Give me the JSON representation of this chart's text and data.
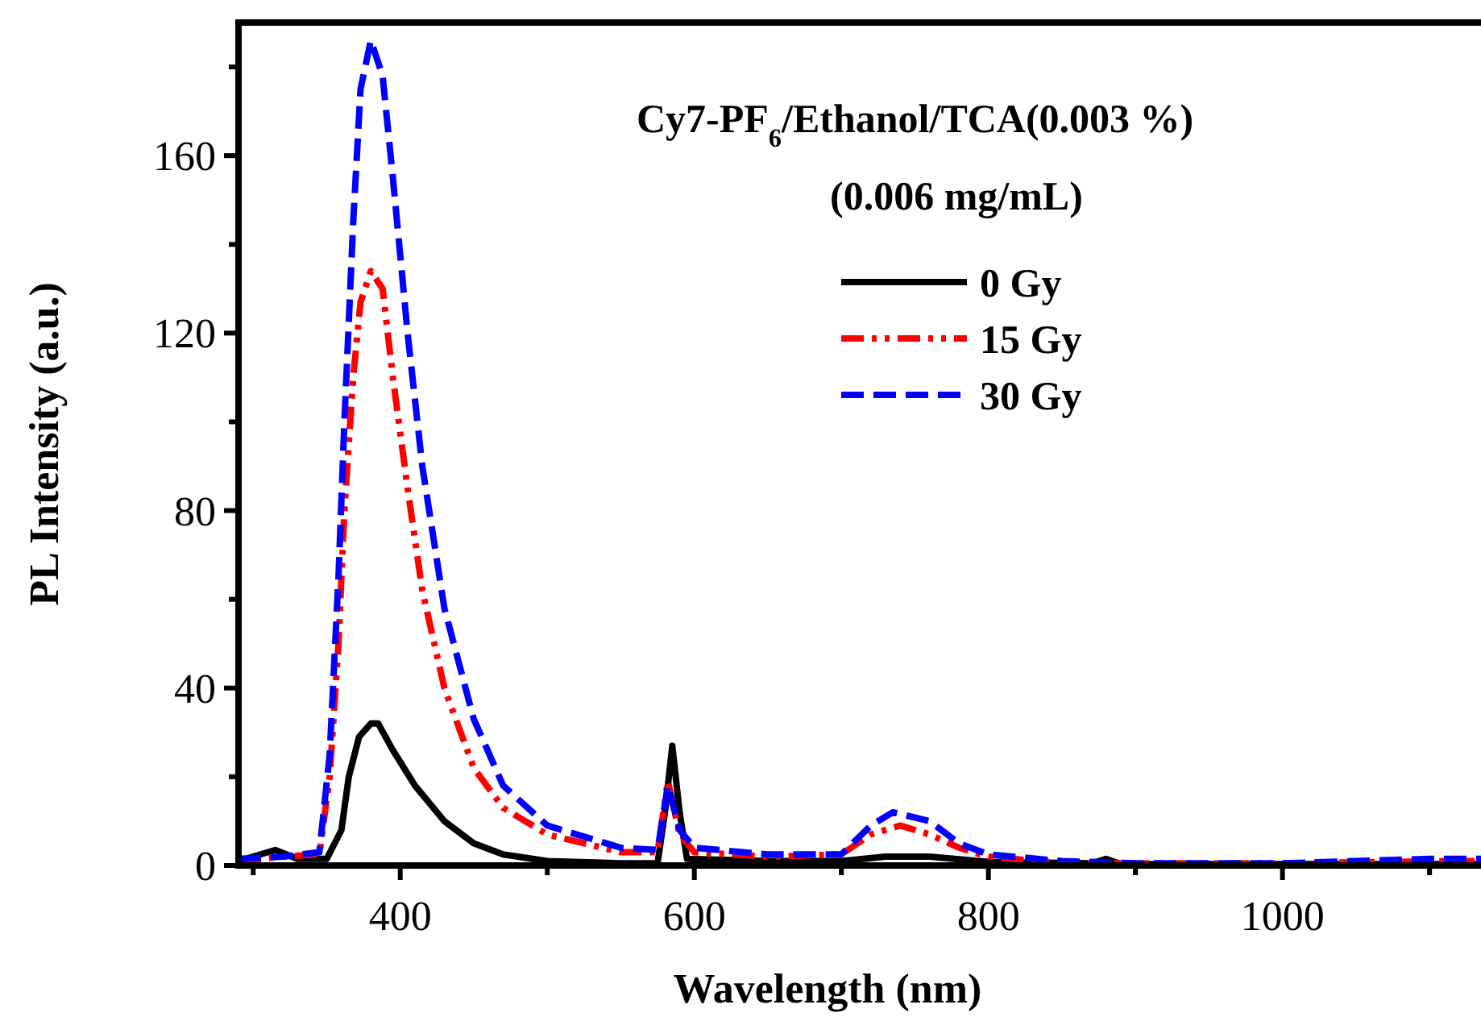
{
  "chart_data": {
    "type": "line",
    "title": "Cy7-PF$_{6}$/Ethanol/TCA(0.003 %)",
    "subtitle": "(0.006 mg/mL)",
    "xlabel": "Wavelength (nm)",
    "ylabel": "PL Intensity  (a.u.)",
    "xlim": [
      290,
      1135
    ],
    "xticks": [
      {
        "value": 300,
        "label": null
      },
      400,
      {
        "value": 500,
        "label": null
      },
      600,
      {
        "value": 700,
        "label": null
      },
      800,
      {
        "value": 900,
        "label": null
      },
      1000,
      {
        "value": 1100,
        "label": null
      }
    ],
    "ylim": [
      0,
      190
    ],
    "yticks": [
      0,
      {
        "value": 20,
        "label": null
      },
      40,
      {
        "value": 60,
        "label": null
      },
      80,
      {
        "value": 100,
        "label": null
      },
      120,
      {
        "value": 140,
        "label": null
      },
      160,
      {
        "value": 180,
        "label": null
      }
    ],
    "grid": false,
    "legend": "top right",
    "series": [
      {
        "name": "0 Gy",
        "color": "#000000",
        "line_style": "solid",
        "x": [
          290,
          315,
          330,
          350,
          360,
          365,
          372,
          380,
          385,
          395,
          410,
          430,
          450,
          470,
          500,
          550,
          575,
          580,
          585,
          590,
          595,
          650,
          700,
          730,
          760,
          800,
          870,
          880,
          890,
          1000,
          1135
        ],
        "values": [
          1,
          3.5,
          1.5,
          1.5,
          8,
          20,
          29,
          32,
          32,
          26,
          18,
          10,
          5,
          2.5,
          1,
          0.5,
          0.5,
          12,
          27,
          12,
          1.5,
          1,
          1,
          2,
          2,
          0.8,
          0.5,
          1.5,
          0.3,
          0.3,
          0.3
        ]
      },
      {
        "name": "15 Gy",
        "color": "#ff0000",
        "line_style": "dashdotdot",
        "x": [
          290,
          320,
          345,
          352,
          358,
          362,
          368,
          373,
          380,
          388,
          395,
          405,
          415,
          430,
          450,
          470,
          500,
          550,
          575,
          582,
          590,
          600,
          650,
          700,
          720,
          740,
          760,
          780,
          800,
          850,
          1000,
          1120,
          1135
        ],
        "values": [
          1,
          2,
          2.5,
          20,
          50,
          80,
          110,
          127,
          134,
          130,
          110,
          85,
          62,
          40,
          22,
          13,
          7,
          3,
          3,
          19,
          7,
          3,
          2,
          2.5,
          7,
          9,
          7,
          4,
          2,
          0.5,
          0.5,
          1,
          1
        ]
      },
      {
        "name": "30 Gy",
        "color": "#0000ff",
        "line_style": "dashed",
        "x": [
          290,
          320,
          345,
          352,
          358,
          362,
          368,
          373,
          380,
          388,
          395,
          405,
          415,
          430,
          450,
          470,
          500,
          550,
          575,
          582,
          590,
          600,
          650,
          700,
          720,
          735,
          760,
          780,
          800,
          850,
          900,
          1000,
          1100,
          1135
        ],
        "values": [
          1.5,
          2,
          3,
          25,
          65,
          100,
          145,
          175,
          186,
          178,
          155,
          120,
          90,
          58,
          33,
          18,
          9,
          4,
          3.5,
          18,
          8,
          4,
          2.5,
          2.5,
          9,
          12,
          10,
          5,
          2.5,
          1,
          0.5,
          0.5,
          1.5,
          1.5
        ]
      }
    ]
  }
}
